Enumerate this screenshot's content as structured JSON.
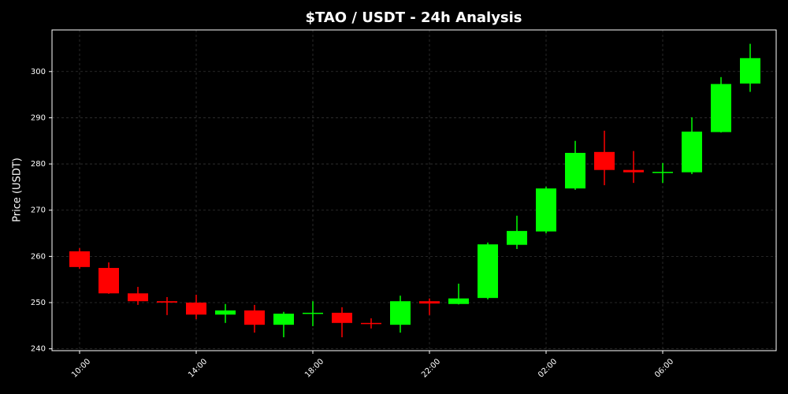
{
  "chart_data": {
    "type": "candlestick",
    "title": "$TAO / USDT - 24h Analysis",
    "y_label": "Price (USDT)",
    "categories": [
      "10:00",
      null,
      null,
      null,
      "14:00",
      null,
      null,
      null,
      "18:00",
      null,
      null,
      null,
      "22:00",
      null,
      null,
      null,
      "02:00",
      null,
      null,
      null,
      "06:00",
      null,
      null,
      null
    ],
    "open": [
      261.1,
      257.5,
      252.0,
      250.3,
      250.0,
      247.4,
      248.3,
      245.2,
      247.6,
      247.8,
      245.6,
      245.2,
      250.3,
      249.7,
      251.0,
      262.5,
      265.4,
      274.7,
      282.6,
      278.7,
      278.2,
      278.2,
      286.9,
      297.4
    ],
    "high": [
      261.8,
      258.7,
      253.4,
      251.2,
      251.7,
      249.7,
      249.5,
      248.0,
      250.3,
      249.0,
      246.6,
      251.5,
      250.9,
      254.1,
      263.0,
      268.8,
      275.1,
      285.0,
      287.2,
      282.8,
      280.2,
      290.1,
      298.8,
      306.0
    ],
    "low": [
      257.3,
      251.9,
      249.5,
      247.3,
      246.4,
      245.6,
      243.5,
      242.5,
      244.9,
      242.5,
      244.4,
      243.5,
      247.3,
      249.6,
      250.7,
      261.6,
      265.0,
      274.4,
      275.4,
      275.9,
      275.9,
      277.8,
      286.8,
      295.6
    ],
    "close": [
      257.7,
      252.0,
      250.3,
      250.0,
      247.4,
      248.3,
      245.2,
      247.6,
      247.8,
      245.6,
      245.4,
      250.3,
      249.8,
      250.9,
      262.6,
      265.5,
      274.7,
      282.4,
      278.7,
      278.2,
      278.3,
      287.0,
      297.3,
      302.9
    ],
    "up_color": "#00ff00",
    "down_color": "#ff0000",
    "ylim": [
      239.6,
      309.0
    ],
    "yticks": [
      240,
      250,
      260,
      270,
      280,
      290,
      300
    ],
    "grid": true
  }
}
